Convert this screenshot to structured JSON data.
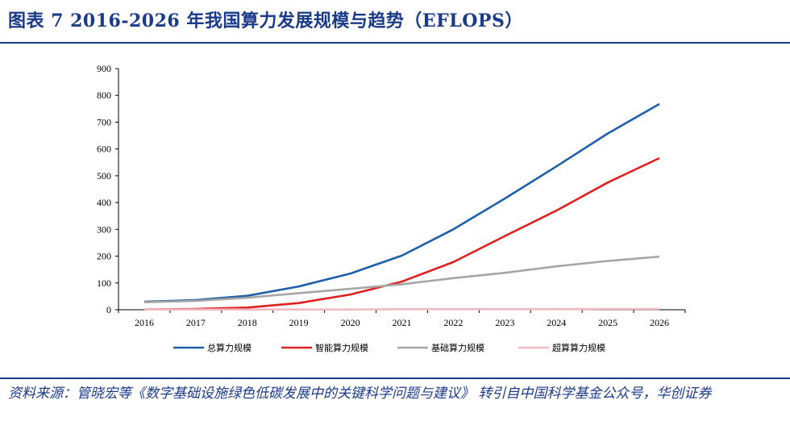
{
  "header": {
    "title": "图表 7   2016-2026 年我国算力发展规模与趋势（EFLOPS）"
  },
  "footer": {
    "source": "资料来源：管晓宏等《数字基础设施绿色低碳发展中的关键科学问题与建议》 转引自中国科学基金公众号，华创证券"
  },
  "chart_data": {
    "type": "line",
    "x": [
      "2016",
      "2017",
      "2018",
      "2019",
      "2020",
      "2021",
      "2022",
      "2023",
      "2024",
      "2025",
      "2026"
    ],
    "ylim": [
      0,
      900
    ],
    "yticks": [
      0,
      100,
      200,
      300,
      400,
      500,
      600,
      700,
      800,
      900
    ],
    "grid": false,
    "legend_position": "bottom",
    "series": [
      {
        "name": "总算力规模",
        "color": "#1f5fa8",
        "values": [
          30,
          36,
          52,
          87,
          135,
          202,
          300,
          415,
          535,
          658,
          768
        ]
      },
      {
        "name": "智能算力规模",
        "color": "#e02020",
        "values": [
          1,
          3,
          8,
          25,
          57,
          105,
          178,
          275,
          370,
          475,
          566
        ]
      },
      {
        "name": "基础算力规模",
        "color": "#a6a6a6",
        "values": [
          28,
          33,
          45,
          62,
          78,
          95,
          118,
          138,
          162,
          182,
          198
        ]
      },
      {
        "name": "超算算力规模",
        "color": "#f4b8c0",
        "values": [
          1,
          1,
          1,
          1,
          1,
          2,
          2,
          2,
          2,
          3,
          3
        ]
      }
    ]
  }
}
